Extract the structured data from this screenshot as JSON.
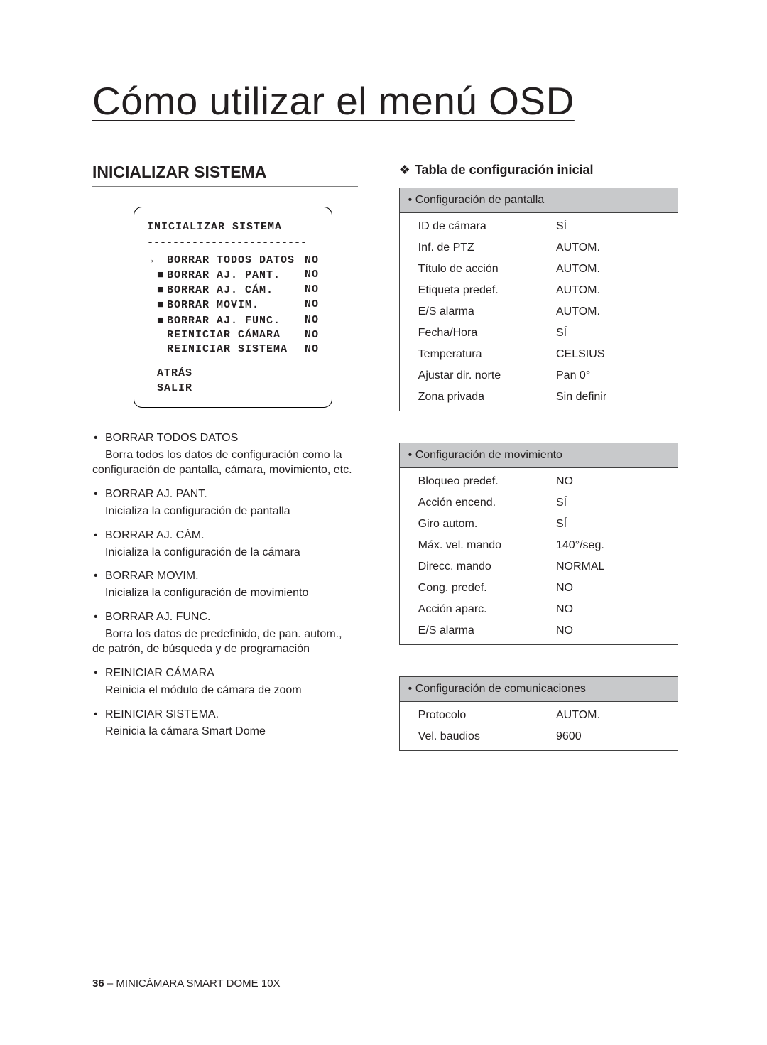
{
  "pageTitle": "Cómo utilizar el menú OSD",
  "sectionHeading": "INICIALIZAR SISTEMA",
  "osd": {
    "title": "INICIALIZAR SISTEMA",
    "sep": "-------------------------",
    "rows": [
      {
        "arrow": "→",
        "marker": "",
        "label": "BORRAR TODOS DATOS",
        "val": "NO"
      },
      {
        "arrow": "",
        "marker": "■",
        "label": "BORRAR AJ. PANT.",
        "val": "NO"
      },
      {
        "arrow": "",
        "marker": "■",
        "label": "BORRAR AJ. CÁM.",
        "val": "NO"
      },
      {
        "arrow": "",
        "marker": "■",
        "label": "BORRAR MOVIM.",
        "val": "NO"
      },
      {
        "arrow": "",
        "marker": "■",
        "label": "BORRAR AJ. FUNC.",
        "val": "NO"
      },
      {
        "arrow": "",
        "marker": "",
        "label": "REINICIAR CÁMARA",
        "val": "NO"
      },
      {
        "arrow": "",
        "marker": "",
        "label": "REINICIAR SISTEMA",
        "val": "NO"
      }
    ],
    "footer": [
      "ATRÁS",
      "SALIR"
    ]
  },
  "desc": [
    {
      "term": "BORRAR TODOS DATOS",
      "def": "Borra todos los datos de configuración como la configuración de pantalla, cámara, movimiento, etc."
    },
    {
      "term": "BORRAR AJ. PANT.",
      "def": "Inicializa la configuración de pantalla"
    },
    {
      "term": "BORRAR AJ. CÁM.",
      "def": "Inicializa la configuración de la cámara"
    },
    {
      "term": "BORRAR MOVIM.",
      "def": "Inicializa la configuración de movimiento"
    },
    {
      "term": "BORRAR AJ. FUNC.",
      "def": "Borra los datos de predefinido, de pan. autom., de patrón, de búsqueda y de programación"
    },
    {
      "term": "REINICIAR CÁMARA",
      "def": "Reinicia el módulo de cámara de zoom"
    },
    {
      "term": "REINICIAR SISTEMA.",
      "def": "Reinicia la cámara Smart Dome"
    }
  ],
  "subHeading": "Tabla de configuración inicial",
  "cloverGlyph": "❖",
  "tables": [
    {
      "header": "Configuración de pantalla",
      "rows": [
        {
          "k": "ID de cámara",
          "v": "SÍ"
        },
        {
          "k": "Inf. de PTZ",
          "v": "AUTOM."
        },
        {
          "k": "Título de acción",
          "v": "AUTOM."
        },
        {
          "k": "Etiqueta predef.",
          "v": "AUTOM."
        },
        {
          "k": "E/S alarma",
          "v": "AUTOM."
        },
        {
          "k": "Fecha/Hora",
          "v": "SÍ"
        },
        {
          "k": "Temperatura",
          "v": "CELSIUS"
        },
        {
          "k": "Ajustar dir. norte",
          "v": "Pan 0°"
        },
        {
          "k": "Zona privada",
          "v": "Sin definir"
        }
      ]
    },
    {
      "header": "Configuración de movimiento",
      "rows": [
        {
          "k": "Bloqueo predef.",
          "v": "NO"
        },
        {
          "k": "Acción encend.",
          "v": "SÍ"
        },
        {
          "k": "Giro autom.",
          "v": "SÍ"
        },
        {
          "k": "Máx. vel. mando",
          "v": "140°/seg."
        },
        {
          "k": "Direcc. mando",
          "v": "NORMAL"
        },
        {
          "k": "Cong. predef.",
          "v": "NO"
        },
        {
          "k": "Acción aparc.",
          "v": "NO"
        },
        {
          "k": "E/S alarma",
          "v": "NO"
        }
      ]
    },
    {
      "header": "Configuración de comunicaciones",
      "rows": [
        {
          "k": "Protocolo",
          "v": "AUTOM."
        },
        {
          "k": "Vel. baudios",
          "v": "9600"
        }
      ]
    }
  ],
  "footer": {
    "pageNum": "36",
    "sep": " – ",
    "product": "MINICÁMARA SMART DOME 10X"
  }
}
